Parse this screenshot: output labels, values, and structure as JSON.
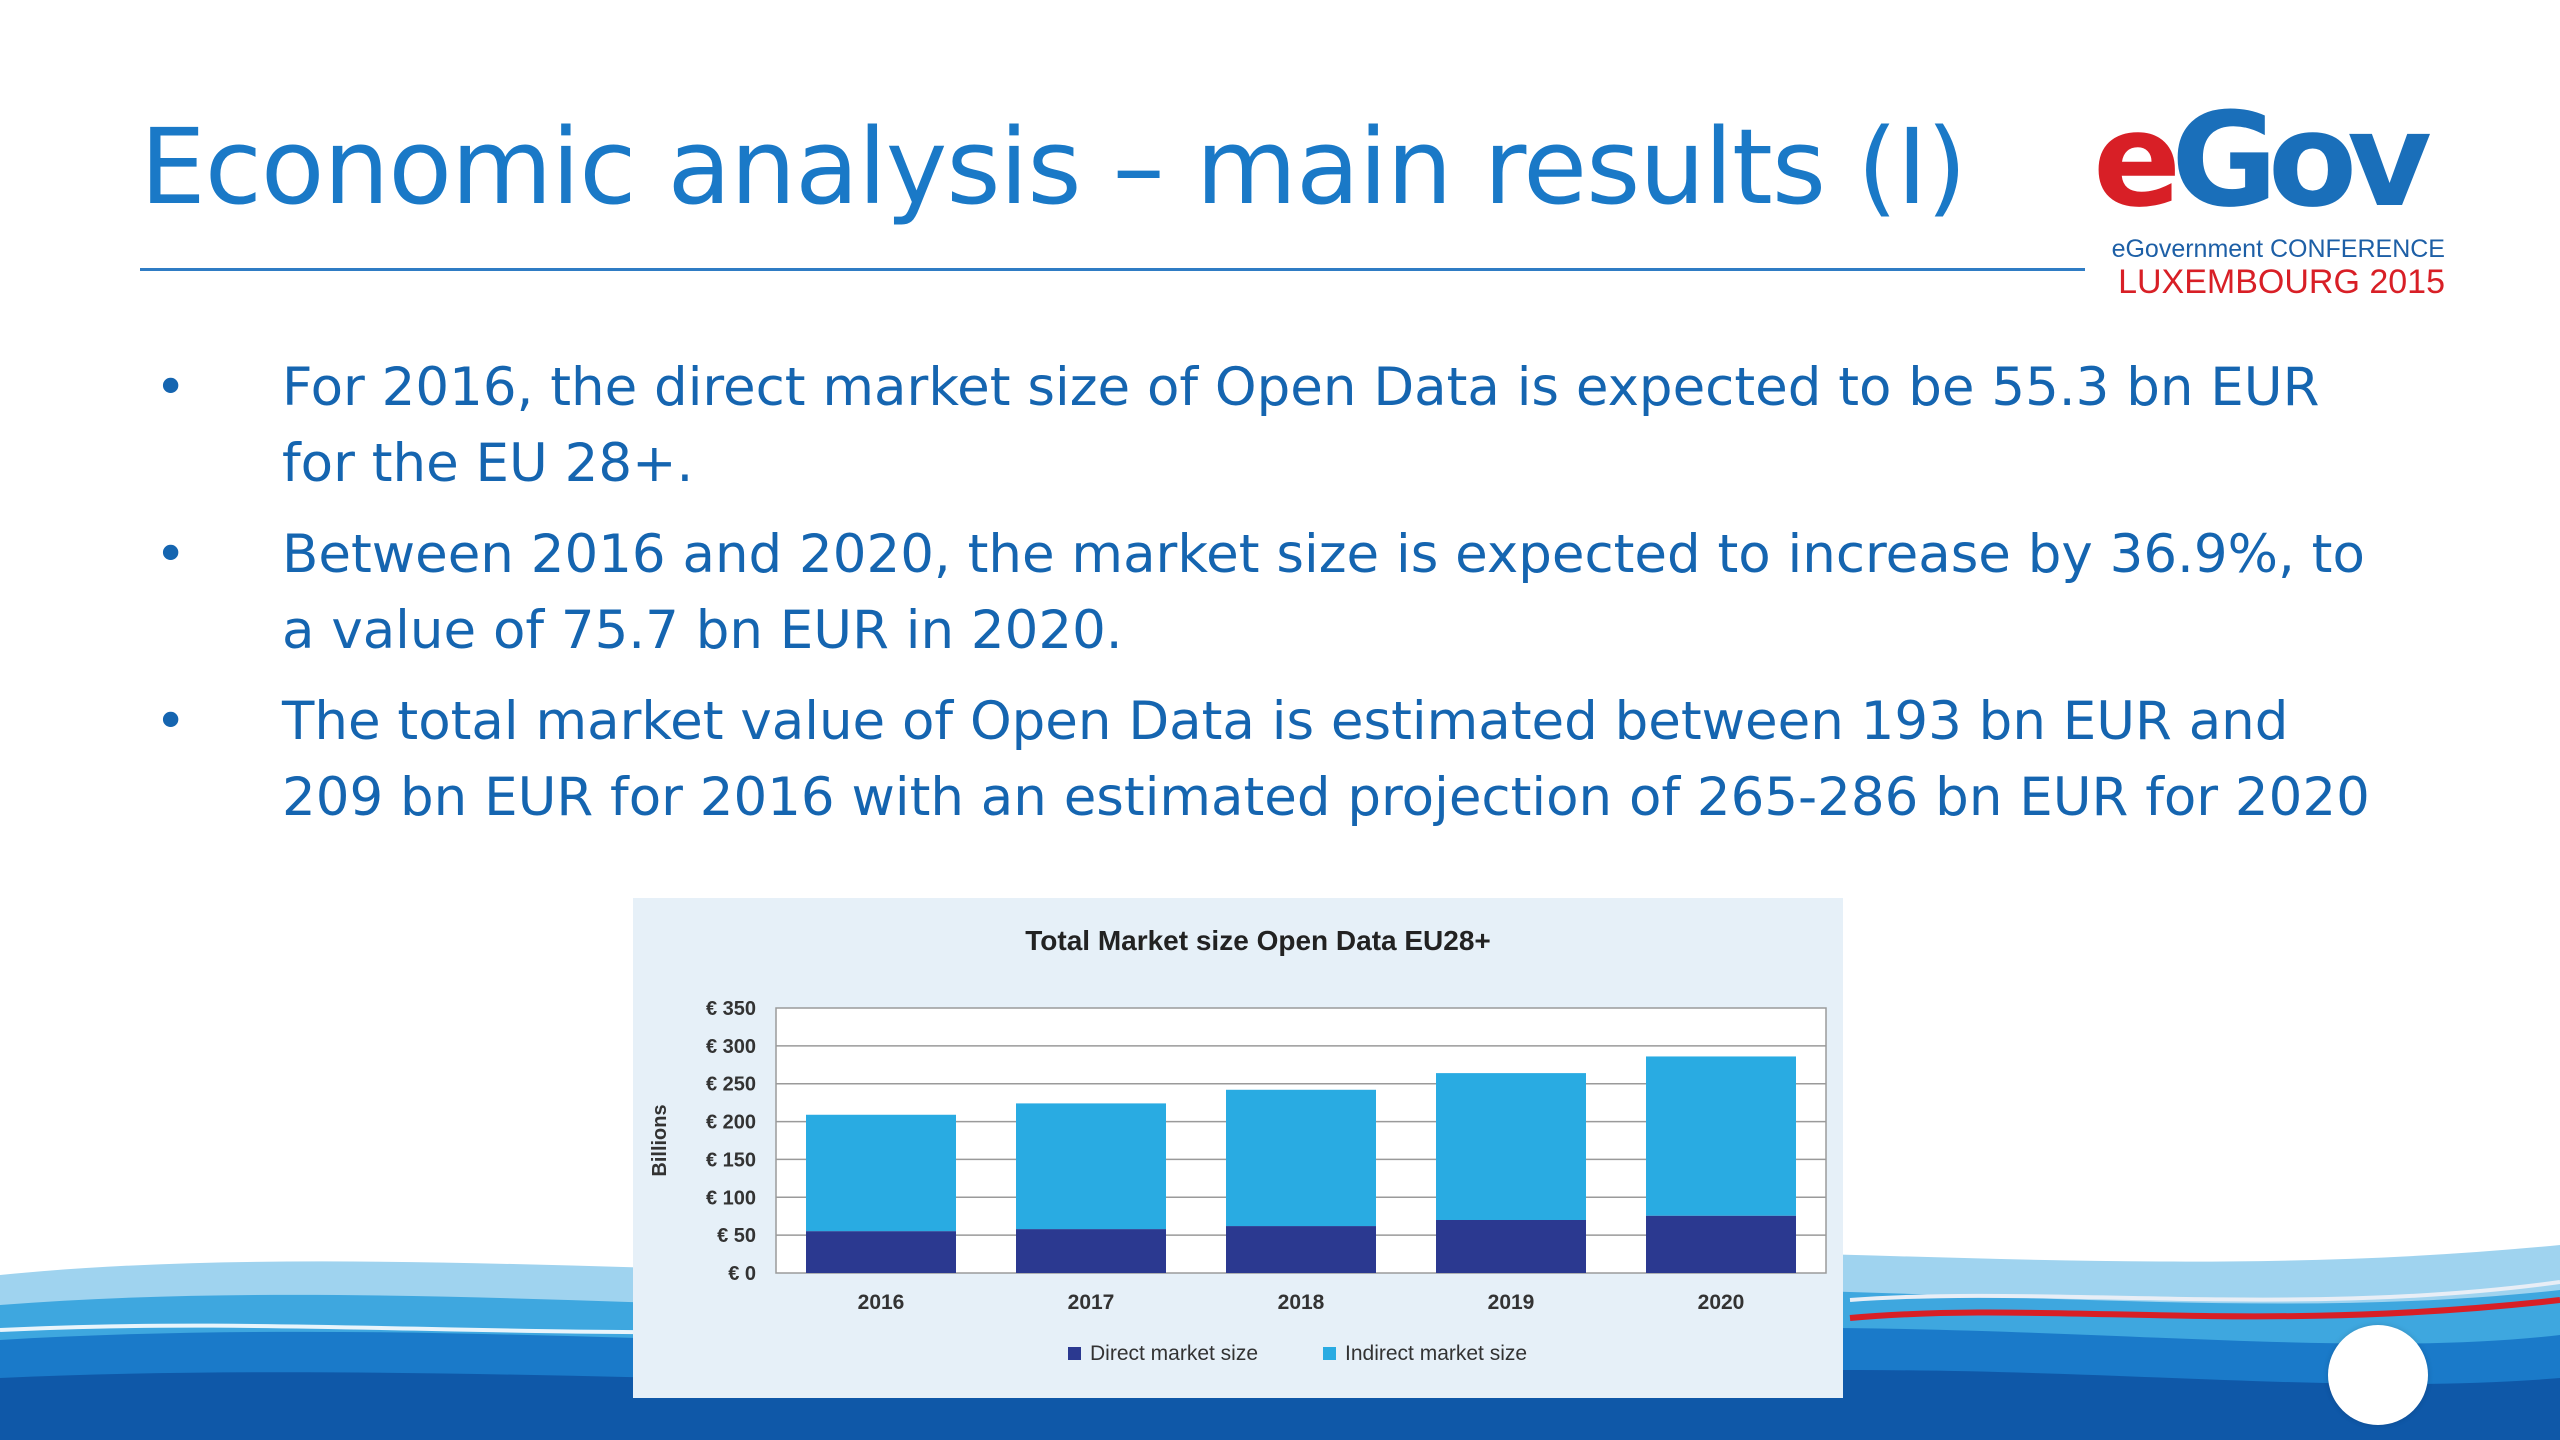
{
  "slide": {
    "title": "Economic analysis – main results (I)",
    "bullets": [
      "For 2016, the direct market size of Open Data is expected to be 55.3 bn EUR for the EU 28+.",
      "Between 2016 and 2020, the market size is expected to increase by 36.9%, to a value of 75.7 bn EUR in 2020.",
      "The total market value of Open Data is estimated between 193 bn EUR and 209 bn EUR for 2016 with an estimated projection of 265-286 bn EUR for 2020"
    ]
  },
  "logo": {
    "letter_e": "e",
    "letters_gov": "Gov",
    "subtitle": "eGovernment CONFERENCE",
    "place": "LUXEMBOURG 2015"
  },
  "colors": {
    "title": "#1a79c7",
    "text": "#1565b0",
    "logo_red": "#d81f26",
    "logo_blue": "#1a6fba",
    "chart_background": "#e6f0f8",
    "direct": "#2b3990",
    "indirect": "#29abe2"
  },
  "chart_data": {
    "type": "bar",
    "stacked": true,
    "title": "Total Market size Open Data EU28+",
    "ylabel": "Billions",
    "xlabel": "",
    "categories": [
      "2016",
      "2017",
      "2018",
      "2019",
      "2020"
    ],
    "series": [
      {
        "name": "Direct market size",
        "color": "#2b3990",
        "values": [
          55.3,
          58,
          62,
          70,
          75.7
        ]
      },
      {
        "name": "Indirect market size",
        "color": "#29abe2",
        "values": [
          153.7,
          166,
          180,
          194,
          210.3
        ]
      }
    ],
    "ylim": [
      0,
      350
    ],
    "yticks": [
      0,
      50,
      100,
      150,
      200,
      250,
      300,
      350
    ],
    "ytick_labels": [
      "€ 0",
      "€ 50",
      "€ 100",
      "€ 150",
      "€ 200",
      "€ 250",
      "€ 300",
      "€ 350"
    ],
    "grid": true,
    "legend_position": "bottom"
  }
}
